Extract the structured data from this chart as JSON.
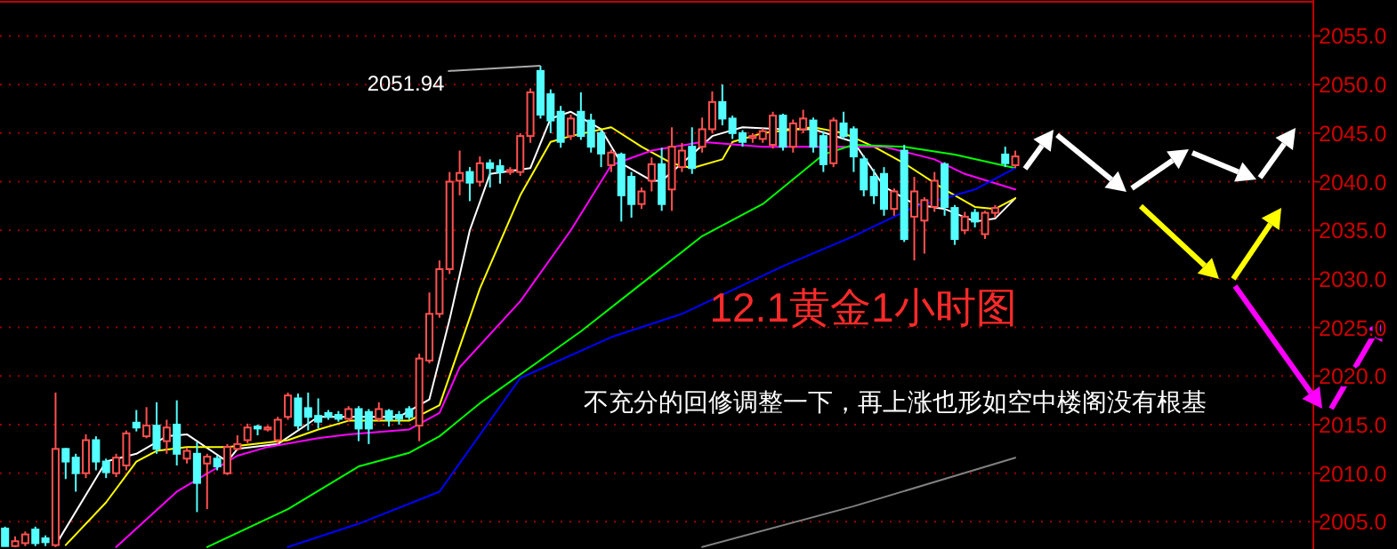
{
  "chart_data": {
    "type": "candlestick",
    "title": "12.1黄金1小时图",
    "annotations": [
      "不充分的回修调整一下，再上涨也形如空中楼阁没有根基",
      "2051.94"
    ],
    "categories": [
      null,
      null,
      null,
      null,
      null,
      null,
      null,
      null,
      null,
      null,
      null,
      null,
      null,
      null,
      null,
      null,
      null,
      null,
      null,
      null,
      null,
      null,
      null,
      null,
      null,
      null,
      null,
      null,
      null,
      null,
      null,
      null,
      null,
      null,
      null,
      null,
      null,
      null,
      null,
      null,
      null,
      null,
      null,
      null,
      null,
      null,
      null,
      null,
      null,
      null,
      null,
      null,
      null,
      null,
      null,
      null,
      null,
      null,
      null,
      null,
      null,
      null,
      null,
      null,
      null,
      null,
      null,
      null,
      null,
      null,
      null,
      null,
      null,
      null,
      null,
      null,
      null,
      null,
      null,
      null,
      null,
      null,
      null,
      null,
      null,
      null,
      null,
      null,
      null,
      null,
      null,
      null,
      null,
      null,
      null,
      null,
      null,
      null,
      null,
      null,
      null,
      null,
      null,
      null,
      null,
      null,
      null,
      null,
      null,
      null,
      null,
      null,
      null,
      null,
      null,
      null,
      null,
      null,
      null,
      null,
      null,
      null,
      null,
      null,
      null,
      null,
      null,
      null,
      null,
      null
    ],
    "ohlc": [
      [
        2004.3,
        2004.5,
        2002.5,
        2002.5
      ],
      [
        2002.5,
        2003.5,
        2002.4,
        2003
      ],
      [
        2002.8,
        2004,
        2002.5,
        2003.7
      ],
      [
        2004.2,
        2004.5,
        2002.5,
        2002.8
      ],
      [
        2003.3,
        2003.6,
        2002.5,
        2002.9
      ],
      [
        2002.6,
        2018.3,
        2002.4,
        2012.5
      ],
      [
        2012.5,
        2012.6,
        2009.4,
        2011.2
      ],
      [
        2011.6,
        2012,
        2008.1,
        2010
      ],
      [
        2010,
        2014,
        2009.5,
        2013.4
      ],
      [
        2013.4,
        2013.8,
        2010.3,
        2011.2
      ],
      [
        2011.2,
        2011.5,
        2009.5,
        2010.1
      ],
      [
        2010,
        2012,
        2009.6,
        2011.6
      ],
      [
        2010.8,
        2014.4,
        2010.3,
        2014.1
      ],
      [
        2015.2,
        2016.5,
        2014.3,
        2014.7
      ],
      [
        2013.8,
        2016.8,
        2013.6,
        2014.9
      ],
      [
        2014.9,
        2017.3,
        2012,
        2012.5
      ],
      [
        2013.3,
        2015.5,
        2012,
        2014.7
      ],
      [
        2015,
        2017.5,
        2010.8,
        2012
      ],
      [
        2011.5,
        2012.6,
        2011,
        2012.3
      ],
      [
        2012,
        2013.2,
        2006,
        2009
      ],
      [
        2011,
        2012,
        2006.3,
        2011.7
      ],
      [
        2011.5,
        2011.8,
        2010.3,
        2010.7
      ],
      [
        2010,
        2013,
        2009.8,
        2012.7
      ],
      [
        2012.5,
        2013.9,
        2012.3,
        2013
      ],
      [
        2013.4,
        2015.1,
        2013.1,
        2014.7
      ],
      [
        2014.8,
        2015,
        2013.9,
        2014.6
      ],
      [
        2014.5,
        2014.9,
        2014.3,
        2014.7
      ],
      [
        2013.4,
        2015.8,
        2013,
        2015.5
      ],
      [
        2015.8,
        2018.3,
        2015.5,
        2018
      ],
      [
        2017.7,
        2018.2,
        2014.5,
        2014.9
      ],
      [
        2016.7,
        2018.3,
        2014.4,
        2015.8
      ],
      [
        2015.9,
        2017.7,
        2014.6,
        2015.3
      ],
      [
        2016.2,
        2016.5,
        2015.5,
        2015.8
      ],
      [
        2016,
        2016.4,
        2015.3,
        2015.6
      ],
      [
        2015.6,
        2016.9,
        2015.3,
        2016.6
      ],
      [
        2016.6,
        2016.9,
        2013.3,
        2014.6
      ],
      [
        2016.3,
        2016.6,
        2013,
        2014.6
      ],
      [
        2015.6,
        2017.3,
        2015.3,
        2016.6
      ],
      [
        2016.4,
        2016.6,
        2014.8,
        2015.5
      ],
      [
        2016,
        2016.4,
        2015,
        2015.6
      ],
      [
        2016.6,
        2016.9,
        2015.5,
        2015.8
      ],
      [
        2014.9,
        2022.3,
        2013.3,
        2021.8
      ],
      [
        2021.6,
        2028.6,
        2021.3,
        2026.4
      ],
      [
        2026.4,
        2031.9,
        2026,
        2031
      ],
      [
        2031,
        2041,
        2030.5,
        2040
      ],
      [
        2040.1,
        2043.2,
        2038.6,
        2040.9
      ],
      [
        2041,
        2041.5,
        2038,
        2039.9
      ],
      [
        2040,
        2042.6,
        2039.5,
        2041.9
      ],
      [
        2041.9,
        2042.3,
        2039.4,
        2041.4
      ],
      [
        2041.6,
        2042.3,
        2039.8,
        2041
      ],
      [
        2041,
        2041.5,
        2040.7,
        2041.2
      ],
      [
        2041,
        2045,
        2040.6,
        2044.7
      ],
      [
        2044.7,
        2049.6,
        2044,
        2049.2
      ],
      [
        2051.4,
        2051.94,
        2046.5,
        2046.9
      ],
      [
        2049,
        2049.5,
        2045,
        2046.3
      ],
      [
        2047.2,
        2047.8,
        2043.5,
        2044.1
      ],
      [
        2044.7,
        2046.9,
        2044.3,
        2046.5
      ],
      [
        2047.2,
        2049.2,
        2044.3,
        2044.7
      ],
      [
        2046.3,
        2047,
        2043,
        2043.6
      ],
      [
        2045,
        2045.3,
        2041.5,
        2042.9
      ],
      [
        2041.7,
        2043.3,
        2041,
        2043
      ],
      [
        2042.8,
        2043,
        2035.9,
        2038.6
      ],
      [
        2040.5,
        2041,
        2036.3,
        2037.7
      ],
      [
        2037.7,
        2039.4,
        2037.2,
        2039
      ],
      [
        2040.1,
        2042.5,
        2039,
        2041.8
      ],
      [
        2041.8,
        2043.5,
        2037,
        2037.7
      ],
      [
        2039.2,
        2045.6,
        2037,
        2043.6
      ],
      [
        2041.5,
        2044,
        2041,
        2043.2
      ],
      [
        2043.6,
        2045.6,
        2040.8,
        2041.4
      ],
      [
        2043.6,
        2046.6,
        2043,
        2045.4
      ],
      [
        2045.4,
        2049.3,
        2045,
        2048.2
      ],
      [
        2048.2,
        2050,
        2045.8,
        2046.5
      ],
      [
        2046.5,
        2046.8,
        2044.4,
        2045
      ],
      [
        2045,
        2045.3,
        2043.6,
        2044.1
      ],
      [
        2044.5,
        2045,
        2044,
        2044.7
      ],
      [
        2044.4,
        2045.5,
        2044,
        2045.2
      ],
      [
        2043.8,
        2047.2,
        2043.4,
        2046.8
      ],
      [
        2046.8,
        2047,
        2043.2,
        2043.6
      ],
      [
        2043.6,
        2046.4,
        2043,
        2046
      ],
      [
        2045.4,
        2047.4,
        2045,
        2046.5
      ],
      [
        2046.3,
        2046.6,
        2043,
        2043.6
      ],
      [
        2044.7,
        2045.2,
        2041,
        2041.8
      ],
      [
        2041.9,
        2046.6,
        2041.5,
        2046.3
      ],
      [
        2046,
        2047.2,
        2044.4,
        2044.7
      ],
      [
        2045.4,
        2045.7,
        2041,
        2042.6
      ],
      [
        2042.3,
        2042.7,
        2038.5,
        2039.2
      ],
      [
        2040.5,
        2041.3,
        2037.7,
        2038.6
      ],
      [
        2040.8,
        2041.5,
        2036.5,
        2037.2
      ],
      [
        2037.2,
        2039.3,
        2036.5,
        2039
      ],
      [
        2043.2,
        2043.8,
        2033.8,
        2034.1
      ],
      [
        2036.4,
        2040.5,
        2031.9,
        2039
      ],
      [
        2036,
        2038.4,
        2032.6,
        2038.1
      ],
      [
        2037.4,
        2041,
        2036.9,
        2040.1
      ],
      [
        2041.8,
        2042,
        2036.5,
        2037.4
      ],
      [
        2037.3,
        2037.6,
        2033.5,
        2034.1
      ],
      [
        2035,
        2036.9,
        2034.6,
        2036.4
      ],
      [
        2036.8,
        2037.2,
        2035.3,
        2035.9
      ],
      [
        2034.6,
        2037,
        2034.1,
        2036.8
      ],
      [
        2036.8,
        2037.6,
        2036.3,
        2037.3
      ],
      [
        2042.8,
        2043.6,
        2041.5,
        2041.9
      ],
      [
        2041.7,
        2043.2,
        2041.4,
        2042.6
      ],
      null,
      null,
      null,
      null,
      null,
      null,
      null,
      null,
      null,
      null,
      null,
      null,
      null,
      null,
      null,
      null,
      null,
      null,
      null,
      null,
      null,
      null,
      null,
      null,
      null,
      null,
      null,
      null,
      null
    ],
    "colors": [
      "#54ffff",
      "#ff5050",
      "#ff5050",
      "#54ffff",
      "#54ffff",
      "#ff5050",
      "#54ffff",
      "#54ffff",
      "#ff5050",
      "#54ffff",
      "#54ffff",
      "#ff5050",
      "#ff5050",
      "#54ffff",
      "#ff5050",
      "#54ffff",
      "#ff5050",
      "#54ffff",
      "#ff5050",
      "#54ffff",
      "#ff5050",
      "#54ffff",
      "#ff5050",
      "#ff5050",
      "#ff5050",
      "#54ffff",
      "#ff5050",
      "#ff5050",
      "#ff5050",
      "#54ffff",
      "#54ffff",
      "#54ffff",
      "#54ffff",
      "#54ffff",
      "#ff5050",
      "#54ffff",
      "#54ffff",
      "#ff5050",
      "#54ffff",
      "#54ffff",
      "#54ffff",
      "#ff5050",
      "#ff5050",
      "#ff5050",
      "#ff5050",
      "#ff5050",
      "#54ffff",
      "#ff5050",
      "#54ffff",
      "#54ffff",
      "#ff5050",
      "#ff5050",
      "#ff5050",
      "#54ffff",
      "#54ffff",
      "#54ffff",
      "#ff5050",
      "#54ffff",
      "#54ffff",
      "#54ffff",
      "#ff5050",
      "#54ffff",
      "#54ffff",
      "#ff5050",
      "#ff5050",
      "#54ffff",
      "#ff5050",
      "#ff5050",
      "#54ffff",
      "#ff5050",
      "#ff5050",
      "#54ffff",
      "#54ffff",
      "#54ffff",
      "#ff5050",
      "#ff5050",
      "#ff5050",
      "#54ffff",
      "#ff5050",
      "#ff5050",
      "#54ffff",
      "#54ffff",
      "#ff5050",
      "#54ffff",
      "#54ffff",
      "#54ffff",
      "#54ffff",
      "#54ffff",
      "#ff5050",
      "#54ffff",
      "#ff5050",
      "#ff5050",
      "#ff5050",
      "#54ffff",
      "#54ffff",
      "#ff5050",
      "#54ffff",
      "#ff5050",
      "#ff5050",
      "#54ffff",
      "#ff5050",
      null,
      null,
      null,
      null,
      null,
      null,
      null,
      null,
      null,
      null,
      null,
      null,
      null,
      null,
      null,
      null,
      null,
      null,
      null,
      null,
      null,
      null,
      null,
      null,
      null,
      null,
      null,
      null,
      null
    ],
    "series": [
      {
        "type": "line",
        "color": "#ffffff",
        "values": [
          null,
          null,
          null,
          null,
          null,
          2002.6,
          null,
          null,
          null,
          null,
          2011.2,
          null,
          null,
          2012,
          null,
          null,
          2013.8,
          null,
          2014,
          null,
          null,
          null,
          2011.2,
          2012.5,
          null,
          null,
          null,
          2013,
          null,
          null,
          null,
          2015.8,
          null,
          null,
          null,
          2015.8,
          null,
          null,
          null,
          2015.8,
          null,
          null,
          2017.6,
          null,
          2025.8,
          null,
          2035,
          null,
          2040.8,
          null,
          null,
          null,
          2041.4,
          null,
          2046.5,
          null,
          2047.2,
          null,
          null,
          2045.4,
          null,
          2041.9,
          null,
          null,
          2040.1,
          2040.1,
          null,
          null,
          2042.8,
          null,
          2044.7,
          null,
          null,
          2045.6,
          null,
          null,
          null,
          2045.4,
          null,
          null,
          2045.4,
          null,
          null,
          null,
          2044.1,
          null,
          null,
          2039.5,
          null,
          null,
          2037.7,
          null,
          null,
          2037.2,
          null,
          null,
          2035.9,
          null,
          2036.2,
          null,
          2038.3,
          null,
          null,
          null,
          null,
          null,
          null,
          null,
          null,
          null,
          null,
          null,
          null,
          null,
          null,
          null,
          null,
          null,
          null,
          null,
          null,
          null,
          null,
          null,
          null,
          null,
          null,
          null,
          null,
          null
        ]
      },
      {
        "type": "line",
        "color": "#ffff00",
        "values": [
          null,
          null,
          null,
          null,
          null,
          null,
          2002.6,
          null,
          null,
          null,
          2007,
          null,
          null,
          2011.2,
          null,
          2012.3,
          null,
          null,
          2012.7,
          null,
          null,
          null,
          2012.7,
          null,
          null,
          null,
          null,
          null,
          2013.4,
          null,
          null,
          2014.5,
          null,
          null,
          2015.4,
          null,
          null,
          null,
          null,
          null,
          2015.4,
          null,
          null,
          2017,
          null,
          null,
          null,
          2029,
          null,
          null,
          null,
          2038.6,
          null,
          null,
          2044.1,
          null,
          2044.7,
          null,
          null,
          null,
          2045.6,
          null,
          null,
          2043.6,
          null,
          null,
          2041.9,
          null,
          2041.4,
          null,
          null,
          2042.3,
          2044.1,
          null,
          null,
          2045,
          null,
          null,
          null,
          null,
          2045.6,
          null,
          null,
          2045,
          null,
          null,
          2043.6,
          null,
          null,
          2041.9,
          null,
          null,
          null,
          2039.2,
          null,
          null,
          2037.4,
          null,
          2037.2,
          null,
          2038.3,
          null,
          null,
          null,
          null,
          null,
          null,
          null,
          null,
          null,
          null,
          null,
          null,
          null,
          null,
          null,
          null,
          null,
          null,
          null,
          null,
          null,
          null,
          null,
          null,
          null,
          null,
          null,
          null,
          null
        ]
      },
      {
        "type": "line",
        "color": "#ff00ff",
        "values": [
          null,
          null,
          null,
          null,
          null,
          null,
          null,
          null,
          null,
          null,
          null,
          2002.4,
          null,
          null,
          null,
          null,
          null,
          2008.1,
          null,
          null,
          null,
          null,
          null,
          2011.8,
          null,
          null,
          2012.7,
          null,
          null,
          null,
          null,
          2013.6,
          null,
          null,
          2014,
          null,
          null,
          null,
          null,
          null,
          2014.5,
          null,
          null,
          2016.2,
          null,
          2020.9,
          null,
          null,
          null,
          null,
          null,
          2027.7,
          null,
          null,
          null,
          null,
          2035,
          null,
          null,
          null,
          2041.7,
          null,
          null,
          null,
          2043.2,
          null,
          null,
          null,
          null,
          2044.1,
          null,
          null,
          null,
          null,
          null,
          2043.6,
          null,
          null,
          null,
          null,
          null,
          2043.6,
          null,
          null,
          null,
          null,
          null,
          2043.6,
          null,
          null,
          null,
          null,
          2042.3,
          null,
          null,
          2040.8,
          null,
          null,
          null,
          null,
          2039.2,
          null,
          null,
          null,
          null,
          null,
          null,
          null,
          null,
          null,
          null,
          null,
          null,
          null,
          null,
          null,
          null,
          null,
          null,
          null,
          null,
          null,
          null,
          null,
          null,
          null,
          null,
          null,
          null,
          null
        ]
      },
      {
        "type": "line",
        "color": "#00ff00",
        "values": [
          null,
          null,
          null,
          null,
          null,
          null,
          null,
          null,
          null,
          null,
          null,
          null,
          null,
          null,
          null,
          null,
          null,
          null,
          null,
          null,
          2002.4,
          null,
          null,
          null,
          null,
          null,
          null,
          null,
          2006.3,
          null,
          null,
          null,
          null,
          null,
          null,
          2010.7,
          null,
          null,
          null,
          null,
          2012.1,
          null,
          null,
          2013.8,
          null,
          null,
          null,
          2017.2,
          null,
          null,
          null,
          null,
          null,
          null,
          null,
          null,
          null,
          2024.6,
          null,
          null,
          null,
          null,
          null,
          2029.5,
          null,
          null,
          null,
          null,
          null,
          2034.4,
          null,
          null,
          null,
          null,
          null,
          2037.7,
          null,
          null,
          null,
          null,
          null,
          2042.8,
          null,
          null,
          2043.8,
          null,
          null,
          null,
          null,
          2043.6,
          null,
          null,
          null,
          null,
          2042.8,
          null,
          null,
          null,
          null,
          null,
          2041.4,
          null,
          null,
          null,
          null,
          null,
          null,
          null,
          null,
          null,
          null,
          null,
          null,
          null,
          null,
          null,
          null,
          null,
          null,
          null,
          null,
          null,
          null,
          null,
          null,
          null,
          null,
          null,
          null,
          null
        ]
      },
      {
        "type": "line",
        "color": "#0000ff",
        "values": [
          null,
          null,
          null,
          null,
          null,
          null,
          null,
          null,
          null,
          null,
          null,
          null,
          null,
          null,
          null,
          null,
          null,
          null,
          null,
          null,
          null,
          null,
          null,
          null,
          null,
          null,
          null,
          null,
          2002.4,
          null,
          null,
          null,
          null,
          null,
          null,
          2004.8,
          null,
          null,
          null,
          null,
          null,
          null,
          null,
          2008.1,
          null,
          null,
          null,
          null,
          null,
          null,
          null,
          2019.8,
          null,
          null,
          null,
          null,
          null,
          null,
          null,
          null,
          2024,
          null,
          null,
          null,
          null,
          null,
          null,
          2026.4,
          null,
          null,
          null,
          null,
          null,
          null,
          null,
          null,
          null,
          2031.3,
          null,
          null,
          null,
          null,
          null,
          null,
          2034.4,
          null,
          null,
          null,
          null,
          null,
          2037.4,
          null,
          null,
          null,
          null,
          null,
          2039.2,
          null,
          null,
          null,
          2041.4,
          null,
          null,
          null,
          null,
          null,
          null,
          null,
          null,
          null,
          null,
          null,
          null,
          null,
          null,
          null,
          null,
          null,
          null,
          null,
          null,
          null,
          null,
          null,
          null,
          null,
          null,
          null,
          null,
          null
        ]
      },
      {
        "type": "line",
        "color": "#808080",
        "values": [
          null,
          null,
          null,
          null,
          null,
          null,
          null,
          null,
          null,
          null,
          null,
          null,
          null,
          null,
          null,
          null,
          null,
          null,
          null,
          null,
          null,
          null,
          null,
          null,
          null,
          null,
          null,
          null,
          null,
          null,
          null,
          null,
          null,
          null,
          null,
          null,
          null,
          null,
          null,
          null,
          null,
          null,
          null,
          null,
          null,
          null,
          null,
          null,
          null,
          null,
          null,
          null,
          null,
          null,
          null,
          null,
          null,
          null,
          null,
          null,
          null,
          null,
          null,
          null,
          null,
          null,
          null,
          null,
          null,
          2002.4,
          null,
          null,
          null,
          null,
          null,
          null,
          null,
          null,
          null,
          null,
          null,
          null,
          null,
          null,
          2006.6,
          null,
          null,
          null,
          null,
          null,
          null,
          null,
          null,
          null,
          null,
          null,
          null,
          null,
          null,
          null,
          2011.6,
          null,
          null,
          null,
          null,
          null,
          null,
          null,
          null,
          null,
          null,
          null,
          null,
          null,
          null,
          null,
          null,
          null,
          null,
          null,
          null,
          null,
          null,
          null,
          null,
          null,
          null,
          null,
          null,
          null
        ]
      }
    ],
    "ylim": [
      2002.2,
      2058.7
    ],
    "yticks": [
      {
        "value": 2005,
        "label": "2005.0"
      },
      {
        "value": 2010,
        "label": "2010.0"
      },
      {
        "value": 2015,
        "label": "2015.0"
      },
      {
        "value": 2020,
        "label": "2020.0"
      },
      {
        "value": 2025,
        "label": "2025.0"
      },
      {
        "value": 2030,
        "label": "2030.0"
      },
      {
        "value": 2035,
        "label": "2035.0"
      },
      {
        "value": 2040,
        "label": "2040.0"
      },
      {
        "value": 2045,
        "label": "2045.0"
      },
      {
        "value": 2050,
        "label": "2050.0"
      },
      {
        "value": 2055,
        "label": "2055.0"
      }
    ],
    "grid": "y",
    "tick_labels": "y"
  }
}
